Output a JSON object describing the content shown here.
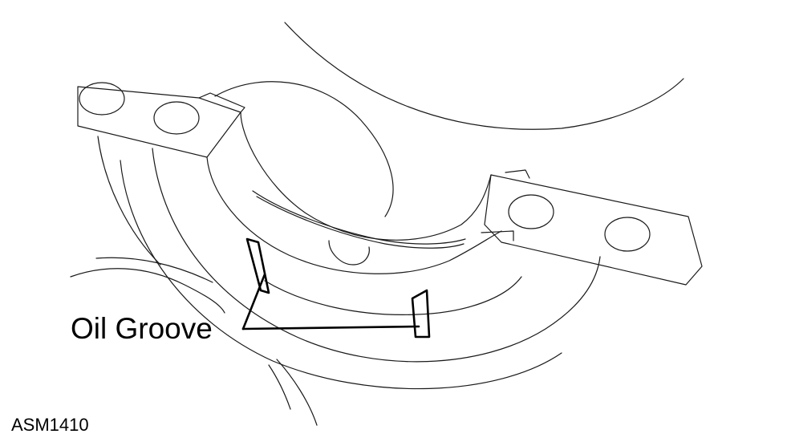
{
  "diagram": {
    "callout_label": "Oil Groove",
    "figure_code": "ASM1410"
  }
}
